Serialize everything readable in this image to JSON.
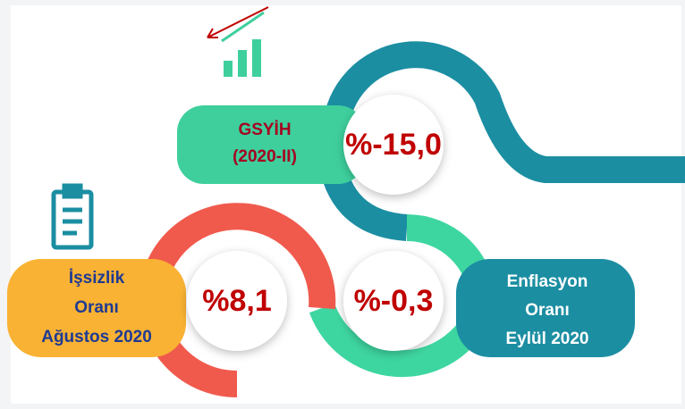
{
  "items": [
    {
      "label": [
        "GSYİH",
        "(2020-II)"
      ],
      "value": "%-15,0"
    },
    {
      "label": [
        "İşsizlik",
        "Oranı",
        "Ağustos 2020"
      ],
      "value": "%8,1"
    },
    {
      "label": [
        "Enflasyon",
        "Oranı",
        "Eylül 2020"
      ],
      "value": "%-0,3"
    }
  ]
}
